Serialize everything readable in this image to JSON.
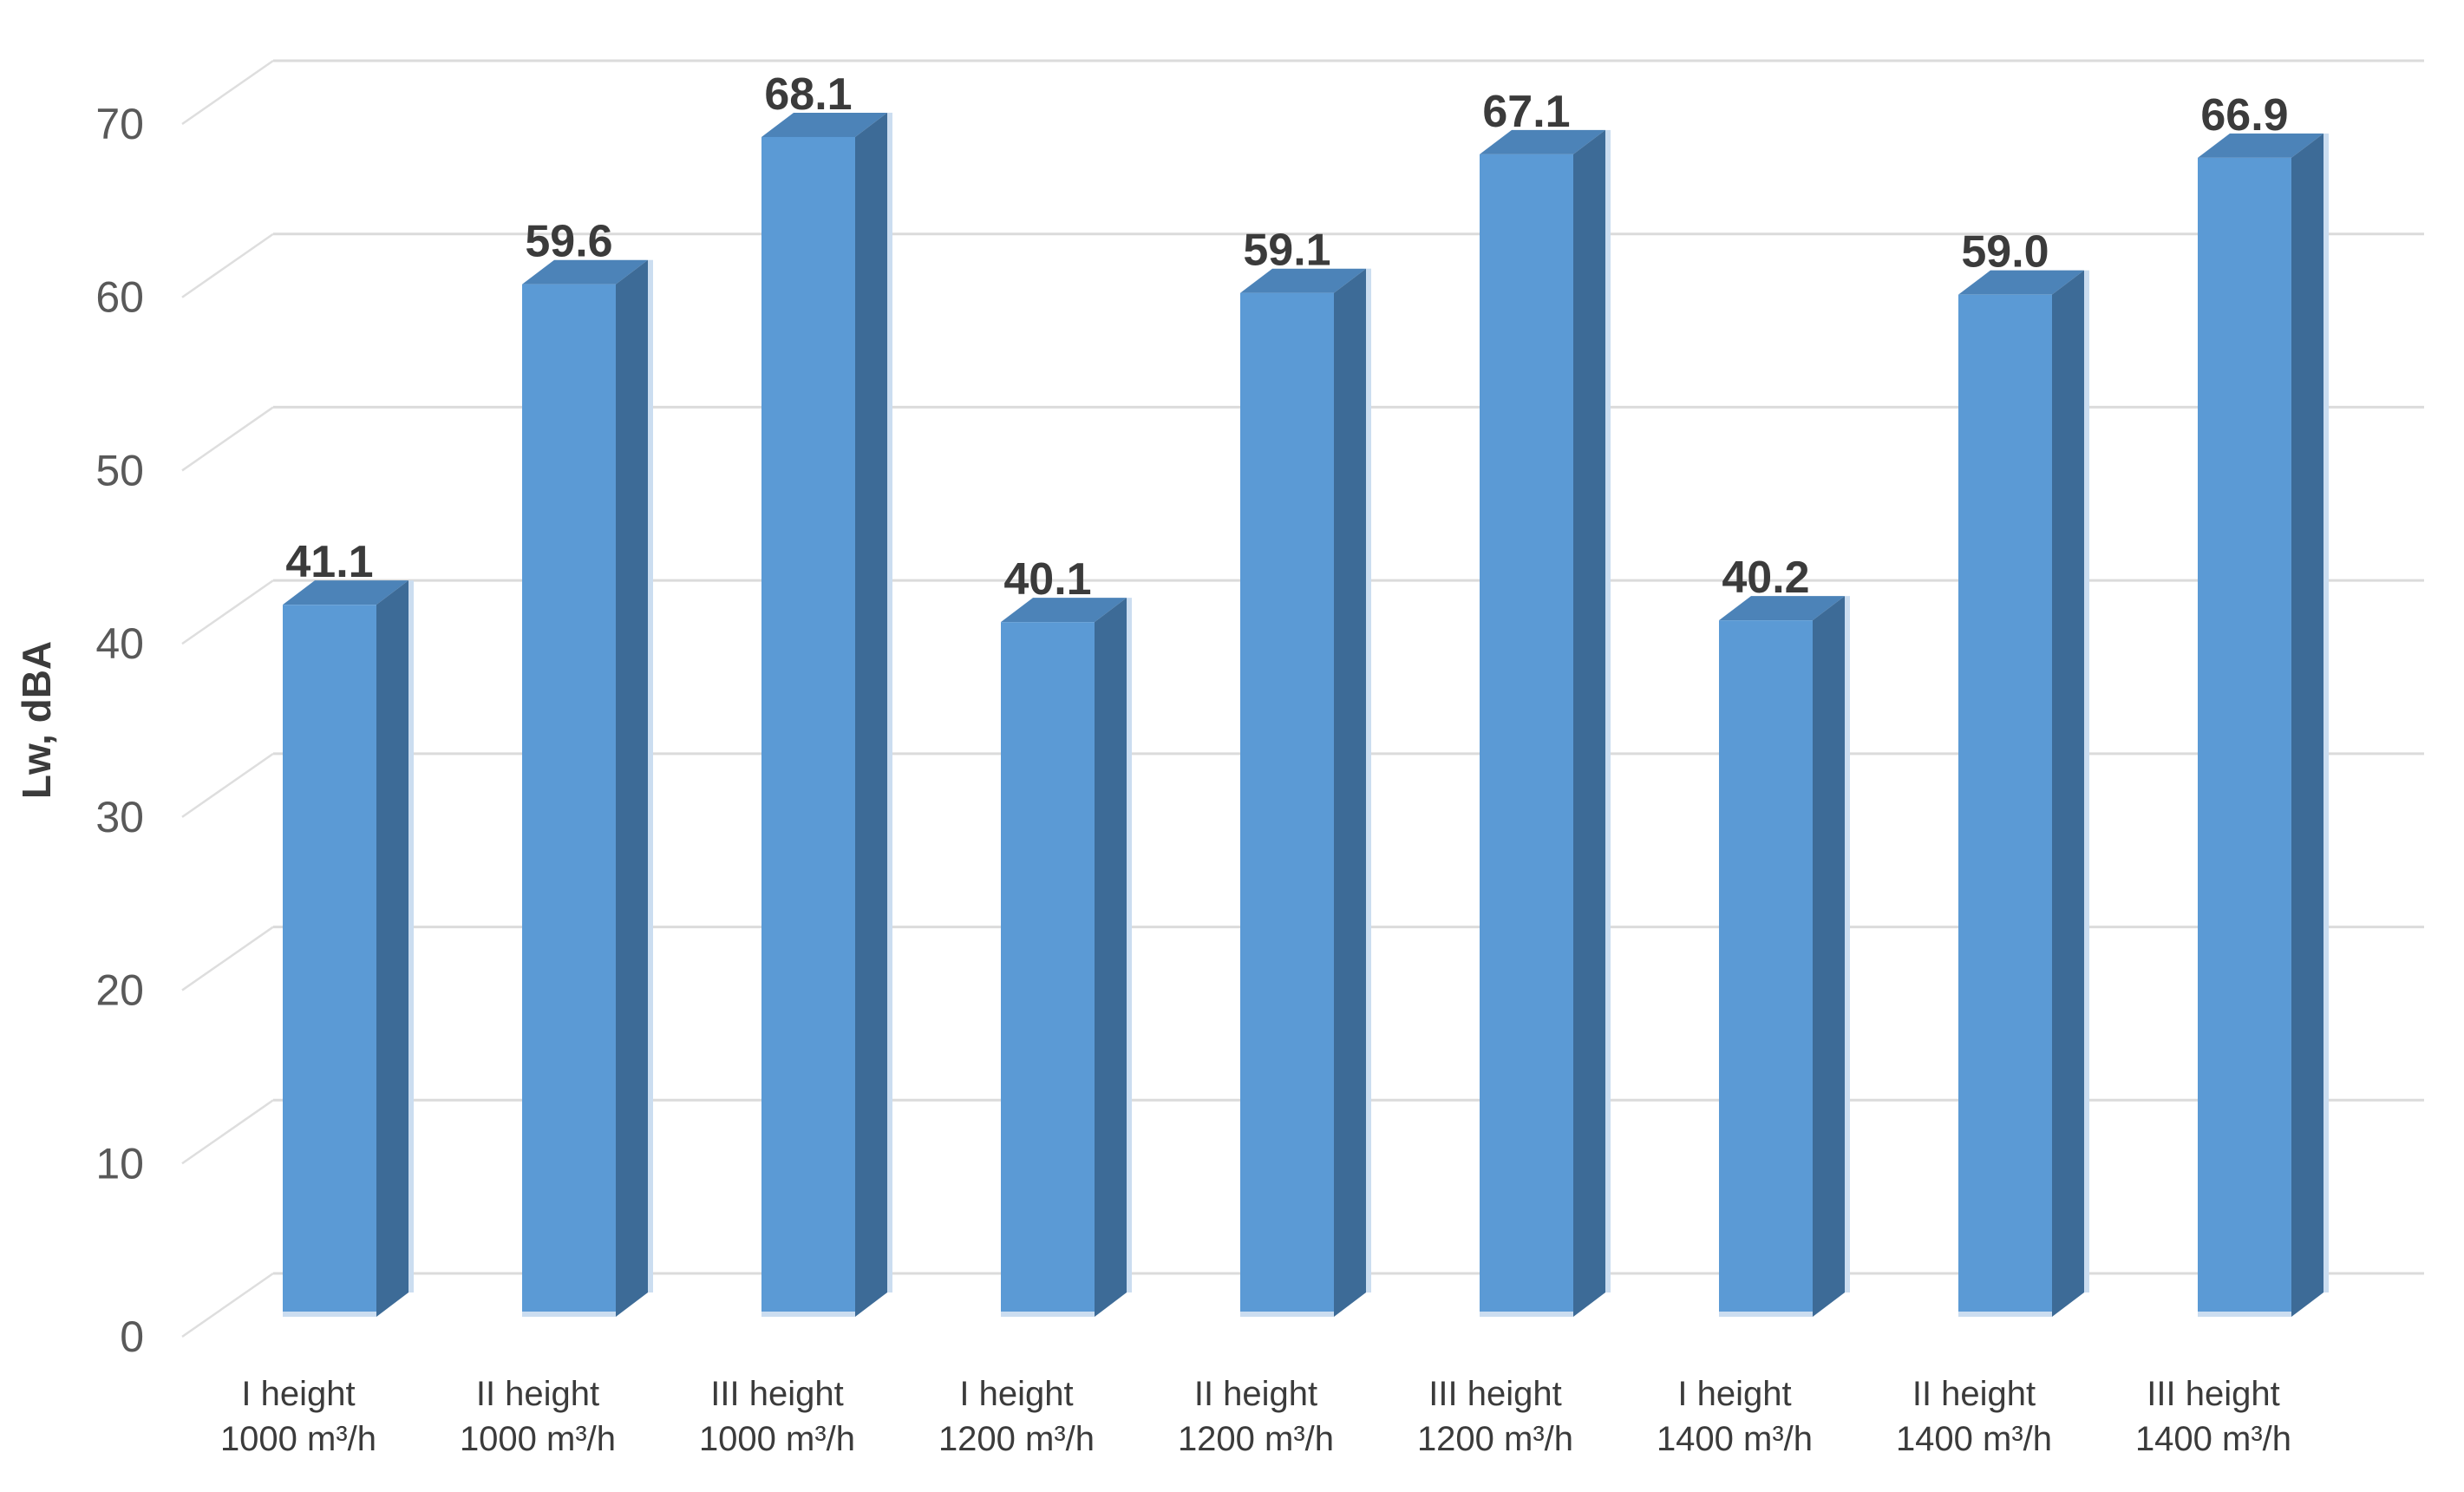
{
  "chart_data": {
    "type": "bar",
    "style": "3d-column",
    "title": "",
    "xlabel": "",
    "ylabel": "Lw, dBA",
    "categories": [
      {
        "line1": "I height",
        "line2": "1000 m³/h"
      },
      {
        "line1": "II height",
        "line2": "1000 m³/h"
      },
      {
        "line1": "III height",
        "line2": "1000 m³/h"
      },
      {
        "line1": "I height",
        "line2": "1200 m³/h"
      },
      {
        "line1": "II height",
        "line2": "1200 m³/h"
      },
      {
        "line1": "III height",
        "line2": "1200 m³/h"
      },
      {
        "line1": "I height",
        "line2": "1400 m³/h"
      },
      {
        "line1": "II height",
        "line2": "1400 m³/h"
      },
      {
        "line1": "III height",
        "line2": "1400 m³/h"
      }
    ],
    "values": [
      41.1,
      59.6,
      68.1,
      40.1,
      59.1,
      67.1,
      40.2,
      59.0,
      66.9
    ],
    "value_labels": [
      "41.1",
      "59.6",
      "68.1",
      "40.1",
      "59.1",
      "67.1",
      "40.2",
      "59.0",
      "66.9"
    ],
    "yticks": [
      0,
      10,
      20,
      30,
      40,
      50,
      60,
      70
    ],
    "ylim": [
      0,
      70
    ],
    "grid": true,
    "legend_position": "none",
    "colors": {
      "bar_front": "#5B9AD5",
      "bar_top": "#4C83B8",
      "bar_side": "#3D6B97",
      "bar_edge_highlight": "#CBDDF0",
      "gridline": "#DBDBDB",
      "diagonal": "#DEDEDE",
      "axis_tick_text": "#595959",
      "label_text": "#3B3B3B",
      "background": "#FFFFFF"
    }
  }
}
